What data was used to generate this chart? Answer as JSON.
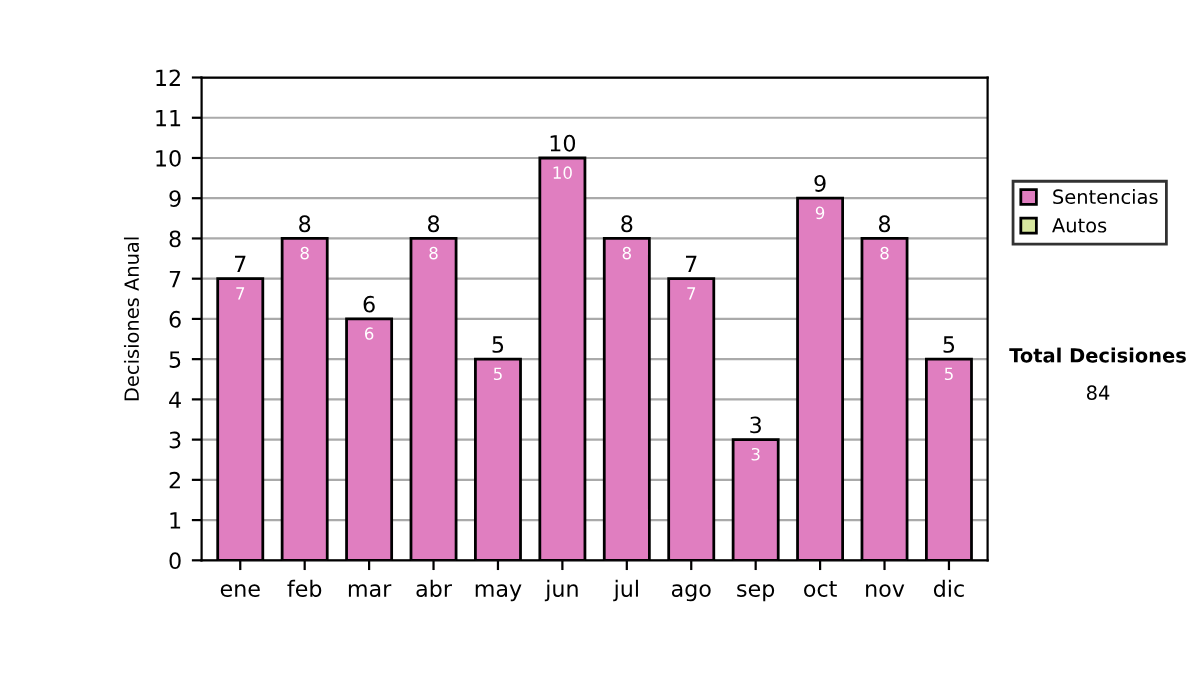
{
  "chart_data": {
    "type": "bar",
    "stacked": true,
    "ylabel": "Decisiones Anual",
    "categories": [
      "ene",
      "feb",
      "mar",
      "abr",
      "may",
      "jun",
      "jul",
      "ago",
      "sep",
      "oct",
      "nov",
      "dic"
    ],
    "series": [
      {
        "name": "Sentencias",
        "color": "#e07ec0",
        "values": [
          7,
          8,
          6,
          8,
          5,
          10,
          8,
          7,
          3,
          9,
          8,
          5
        ],
        "value_labels": [
          "7",
          "8",
          "6",
          "8",
          "5",
          "10",
          "8",
          "7",
          "3",
          "9",
          "8",
          "5"
        ]
      },
      {
        "name": "Autos",
        "color": "#d8e8a0",
        "values": [
          null,
          null,
          null,
          null,
          null,
          null,
          null,
          null,
          null,
          null,
          null,
          null
        ]
      }
    ],
    "totals": [
      "7",
      "8",
      "6",
      "8",
      "5",
      "10",
      "8",
      "7",
      "3",
      "9",
      "8",
      "5"
    ],
    "ylim": [
      0,
      12
    ],
    "yticks": [
      0,
      1,
      2,
      3,
      4,
      5,
      6,
      7,
      8,
      9,
      10,
      11,
      12
    ],
    "grid": "y",
    "legend": "right",
    "annotations": [
      "Total Decisiones",
      "84"
    ]
  }
}
